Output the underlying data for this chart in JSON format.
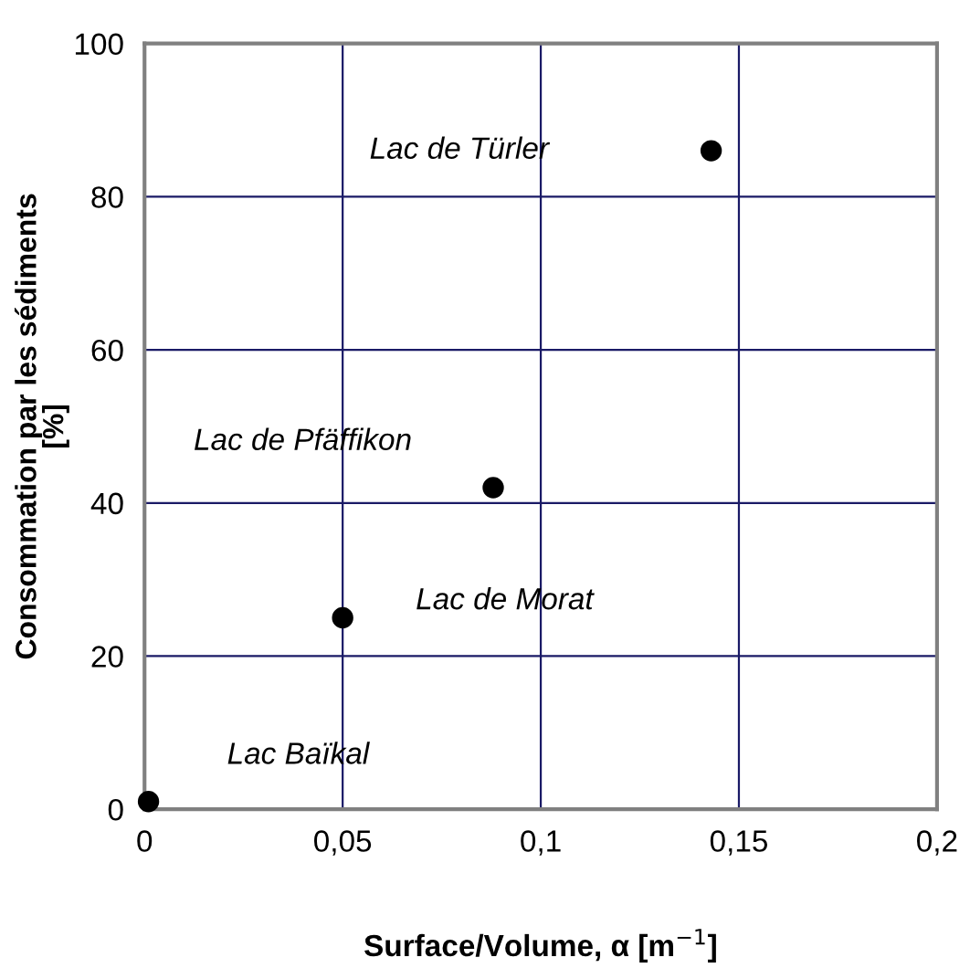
{
  "chart_data": {
    "type": "scatter",
    "xlabel": "Surface/Volume, α [m$^{−1}$]",
    "ylabel": "Consommation par les sédiments\n[%]",
    "x": [
      0.001,
      0.05,
      0.088,
      0.143
    ],
    "values": [
      1,
      25,
      42,
      86
    ],
    "color": "#000000",
    "marker": "circle",
    "xlim": [
      0,
      0.2
    ],
    "xticks": [
      0,
      {
        "value": 0.05,
        "label": "0,05"
      },
      {
        "value": 0.1,
        "label": "0,1"
      },
      {
        "value": 0.15,
        "label": "0,15"
      },
      {
        "value": 0.2,
        "label": "0,2"
      }
    ],
    "ylim": [
      0,
      100
    ],
    "yticks": [
      0,
      20,
      40,
      60,
      80,
      100
    ],
    "grid": true,
    "annotations": [
      "Lac de Türler",
      "Lac de Pfäffikon",
      "Lac de Morat",
      "Lac Baïkal"
    ]
  }
}
